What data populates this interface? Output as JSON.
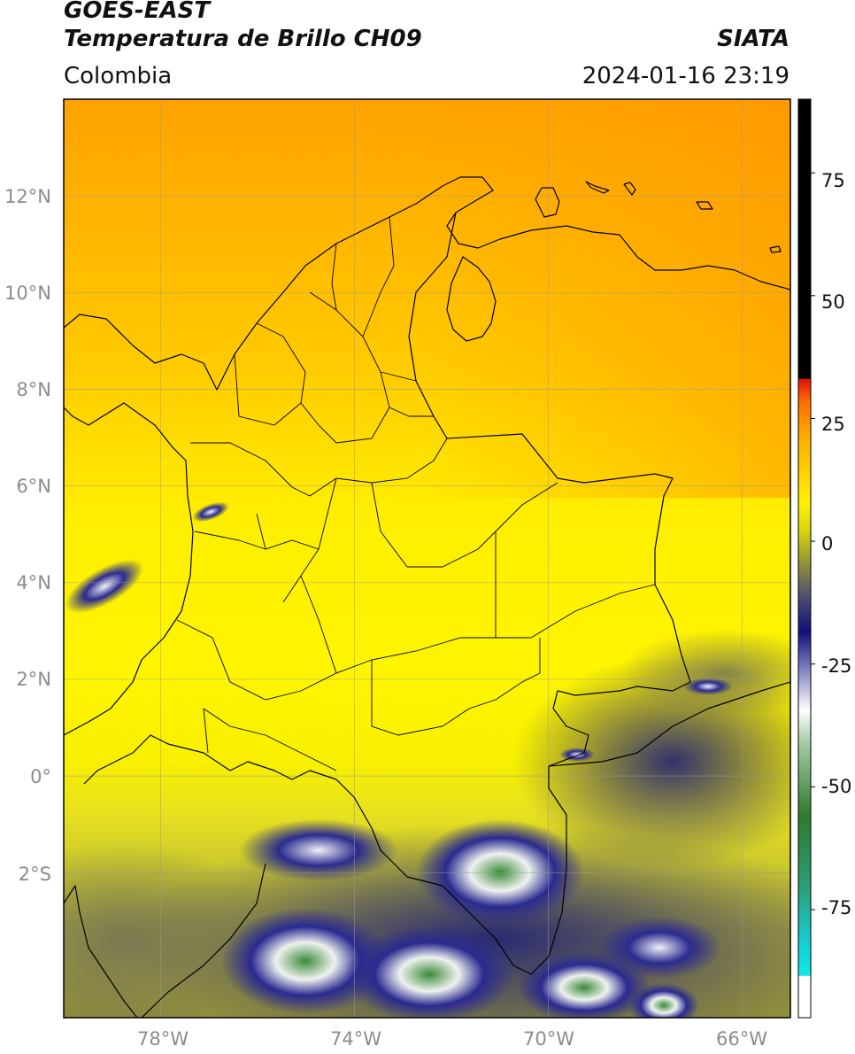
{
  "header": {
    "title_line1": "GOES-EAST",
    "title_line2": "Temperatura de Brillo CH09",
    "source": "SIATA",
    "region": "Colombia",
    "datetime": "2024-01-16 23:19"
  },
  "map": {
    "lat_ticks": [
      "12°N",
      "10°N",
      "8°N",
      "6°N",
      "4°N",
      "2°N",
      "0°",
      "2°S"
    ],
    "lon_ticks": [
      "78°W",
      "74°W",
      "70°W",
      "66°W"
    ],
    "extent_lon": [
      -80,
      -65
    ],
    "extent_lat": [
      -5,
      14
    ],
    "gridlines": true
  },
  "colorbar": {
    "ticks": [
      "75",
      "50",
      "25",
      "0",
      "-25",
      "-50",
      "-75"
    ],
    "range": [
      -97,
      90
    ],
    "colors": {
      "warm": "#000000",
      "red": "#e2120a",
      "orange": "#ffa000",
      "yellow": "#fff200",
      "olive": "#8f8f3c",
      "navy": "#101078",
      "white": "#ffffff",
      "green": "#2f8a2f",
      "cyan": "#10e0e0"
    }
  }
}
